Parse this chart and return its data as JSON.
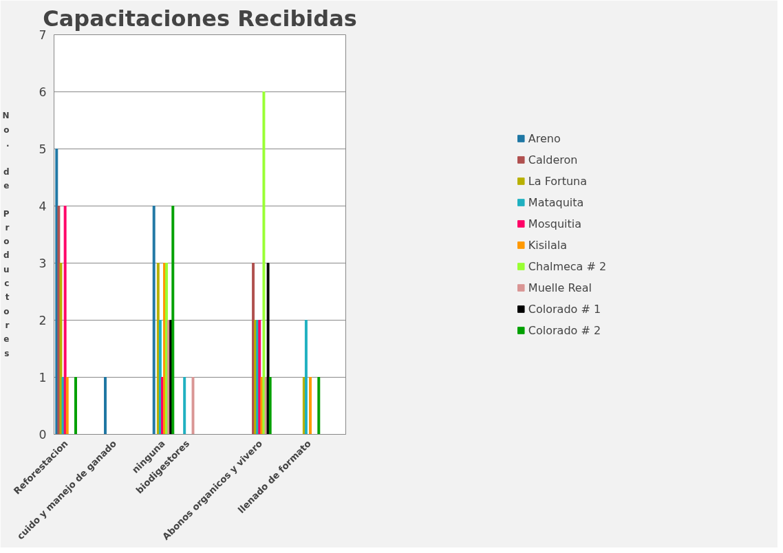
{
  "chart_data": {
    "type": "bar",
    "title": "Capacitaciones Recibidas",
    "ylabel": "No. de Productores",
    "categories": [
      "Reforestacion",
      null,
      "cuido y manejo de ganado",
      null,
      "ninguna",
      "biodigestores",
      null,
      null,
      "Abonos organicos y vivero",
      null,
      "llenado de formato",
      null
    ],
    "series": [
      {
        "name": "Areno",
        "color": "#1f77a4",
        "values": [
          5,
          null,
          1,
          null,
          4,
          0,
          null,
          null,
          0,
          null,
          0,
          null
        ]
      },
      {
        "name": "Calderon",
        "color": "#b0504f",
        "values": [
          4,
          null,
          0,
          null,
          0,
          0,
          null,
          null,
          3,
          null,
          0,
          null
        ]
      },
      {
        "name": "La Fortuna",
        "color": "#b8b000",
        "values": [
          3,
          null,
          0,
          null,
          3,
          0,
          null,
          null,
          2,
          null,
          1,
          null
        ]
      },
      {
        "name": "Mataquita",
        "color": "#1fb0c0",
        "values": [
          1,
          null,
          0,
          null,
          2,
          1,
          null,
          null,
          2,
          null,
          2,
          null
        ]
      },
      {
        "name": "Mosquitia",
        "color": "#ff0066",
        "values": [
          4,
          null,
          0,
          null,
          1,
          0,
          null,
          null,
          2,
          null,
          0,
          null
        ]
      },
      {
        "name": "Kisilala",
        "color": "#ff9900",
        "values": [
          1,
          null,
          0,
          null,
          3,
          0,
          null,
          null,
          1,
          null,
          1,
          null
        ]
      },
      {
        "name": "Chalmeca # 2",
        "color": "#99ff33",
        "values": [
          0,
          null,
          0,
          null,
          3,
          0,
          null,
          null,
          6,
          null,
          0,
          null
        ]
      },
      {
        "name": "Muelle Real",
        "color": "#d99594",
        "values": [
          0,
          null,
          0,
          null,
          2,
          1,
          null,
          null,
          1,
          null,
          0,
          null
        ]
      },
      {
        "name": "Colorado # 1",
        "color": "#000000",
        "values": [
          0,
          null,
          0,
          null,
          2,
          0,
          null,
          null,
          3,
          null,
          0,
          null
        ]
      },
      {
        "name": "Colorado # 2",
        "color": "#00a000",
        "values": [
          1,
          null,
          0,
          null,
          4,
          0,
          null,
          null,
          1,
          null,
          1,
          null
        ]
      }
    ],
    "ylim": [
      0,
      7
    ],
    "yticks": [
      0,
      1,
      2,
      3,
      4,
      5,
      6,
      7
    ],
    "grid": "y",
    "legend": "right"
  }
}
